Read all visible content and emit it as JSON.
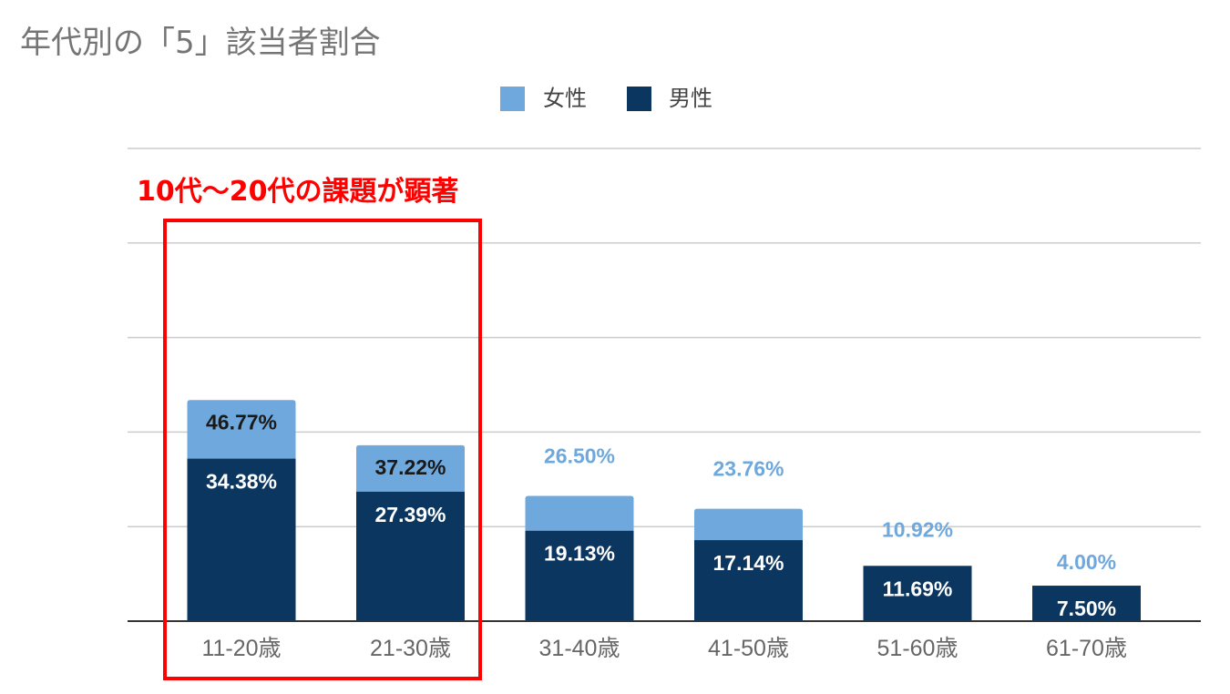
{
  "chart_data": {
    "type": "bar",
    "stacked": true,
    "title": "年代別の「5」該当者割合",
    "annotation": "10代〜20代の課題が顕著",
    "categories": [
      "11-20歳",
      "21-30歳",
      "31-40歳",
      "41-50歳",
      "51-60歳",
      "61-70歳"
    ],
    "series": [
      {
        "name": "男性",
        "color": "#0b3660",
        "values": [
          34.38,
          27.39,
          19.13,
          17.14,
          11.69,
          7.5
        ],
        "labels": [
          "34.38%",
          "27.39%",
          "19.13%",
          "17.14%",
          "11.69%",
          "7.50%"
        ]
      },
      {
        "name": "女性",
        "color": "#6fa8dc",
        "values": [
          46.77,
          37.22,
          26.5,
          23.76,
          10.92,
          4.0
        ],
        "labels": [
          "46.77%",
          "37.22%",
          "26.50%",
          "23.76%",
          "10.92%",
          "4.00%"
        ]
      }
    ],
    "legend_position": "top",
    "grid": true,
    "ylim": [
      0,
      100
    ],
    "highlight": {
      "categories": [
        "11-20歳",
        "21-30歳"
      ],
      "color": "#ff0000"
    }
  }
}
